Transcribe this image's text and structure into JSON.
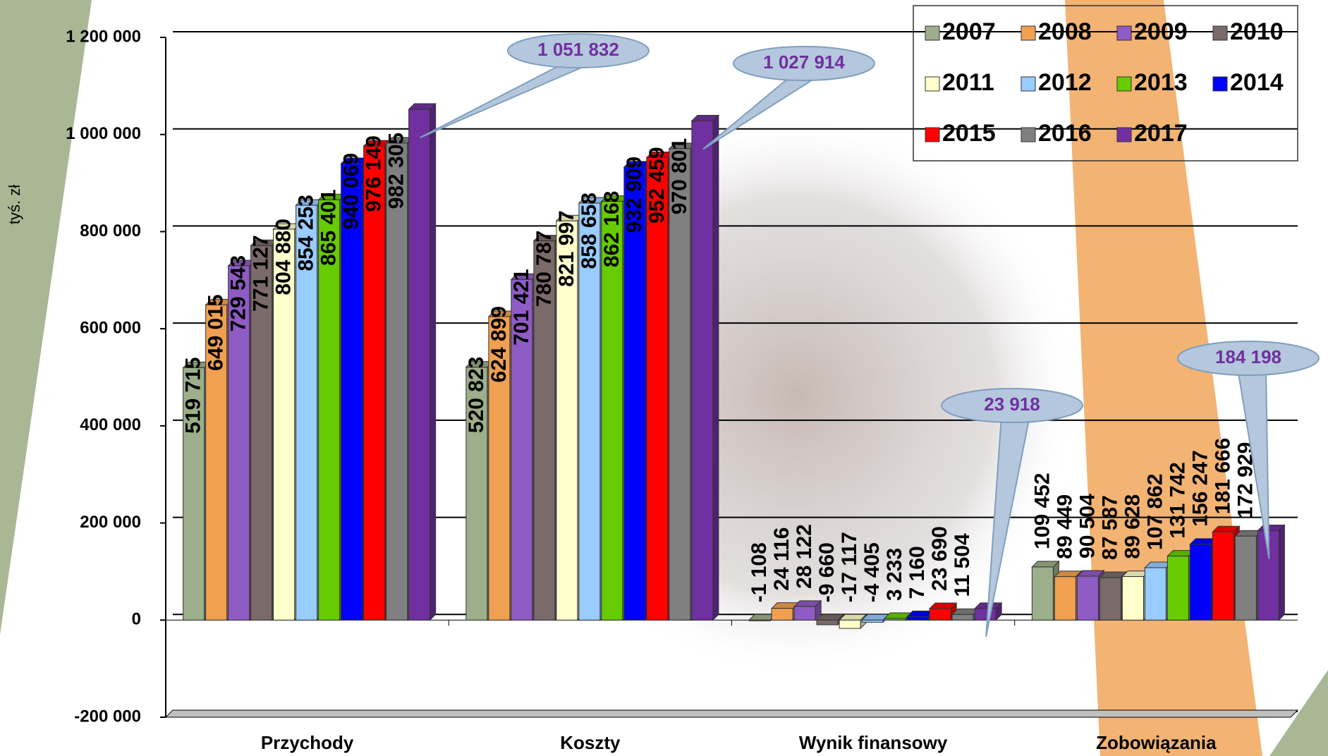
{
  "chart_data": {
    "type": "bar",
    "y_label": "tyś. zł",
    "categories": [
      "Przychody",
      "Koszty",
      "Wynik finansowy",
      "Zobowiązania"
    ],
    "ylim": [
      -200000,
      1200000
    ],
    "yticks": [
      {
        "value": -200000,
        "label": "-200 000"
      },
      0,
      {
        "value": 200000,
        "label": "200 000"
      },
      {
        "value": 400000,
        "label": "400 000"
      },
      {
        "value": 600000,
        "label": "600 000"
      },
      {
        "value": 800000,
        "label": "800 000"
      },
      {
        "value": 1000000,
        "label": "1 000 000"
      },
      {
        "value": 1200000,
        "label": "1 200 000"
      }
    ],
    "grid": true,
    "legend": "top-right",
    "series": [
      {
        "name": "2007",
        "color": "#9caf8a",
        "values": [
          519715,
          520823,
          -1108,
          109452
        ],
        "value_labels": [
          "519 715",
          "520 823",
          "-1 108",
          "109 452"
        ]
      },
      {
        "name": "2008",
        "color": "#f0a050",
        "values": [
          649015,
          624899,
          24116,
          89449
        ],
        "value_labels": [
          "649 015",
          "624 899",
          "24 116",
          "89 449"
        ]
      },
      {
        "name": "2009",
        "color": "#8e5cc4",
        "values": [
          729543,
          701421,
          28122,
          90504
        ],
        "value_labels": [
          "729 543",
          "701 421",
          "28 122",
          "90 504"
        ]
      },
      {
        "name": "2010",
        "color": "#7a6a6a",
        "values": [
          771127,
          780787,
          -9660,
          87587
        ],
        "value_labels": [
          "771 127",
          "780 787",
          "-9 660",
          "87 587"
        ]
      },
      {
        "name": "2011",
        "color": "#ffffcc",
        "values": [
          804880,
          821997,
          -17117,
          89628
        ],
        "value_labels": [
          "804 880",
          "821 997",
          "-17 117",
          "89 628"
        ]
      },
      {
        "name": "2012",
        "color": "#99ccff",
        "values": [
          854253,
          858658,
          -4405,
          107862
        ],
        "value_labels": [
          "854 253",
          "858 658",
          "-4 405",
          "107 862"
        ]
      },
      {
        "name": "2013",
        "color": "#66cc00",
        "values": [
          865401,
          862168,
          3233,
          131742
        ],
        "value_labels": [
          "865 401",
          "862 168",
          "3 233",
          "131 742"
        ]
      },
      {
        "name": "2014",
        "color": "#0000ff",
        "values": [
          940069,
          932909,
          7160,
          156247
        ],
        "value_labels": [
          "940 069",
          "932 909",
          "7 160",
          "156 247"
        ]
      },
      {
        "name": "2015",
        "color": "#ff0000",
        "values": [
          976149,
          952459,
          23690,
          181666
        ],
        "value_labels": [
          "976 149",
          "952 459",
          "23 690",
          "181 666"
        ]
      },
      {
        "name": "2016",
        "color": "#808080",
        "values": [
          982305,
          970801,
          11504,
          172929
        ],
        "value_labels": [
          "982 305",
          "970 801",
          "11 504",
          "172 929"
        ]
      },
      {
        "name": "2017",
        "color": "#7030a0",
        "values": [
          1051832,
          1027914,
          23918,
          184198
        ],
        "value_labels": [
          "1 051 832",
          "1 027 914",
          "23 918",
          "184 198"
        ]
      }
    ]
  }
}
